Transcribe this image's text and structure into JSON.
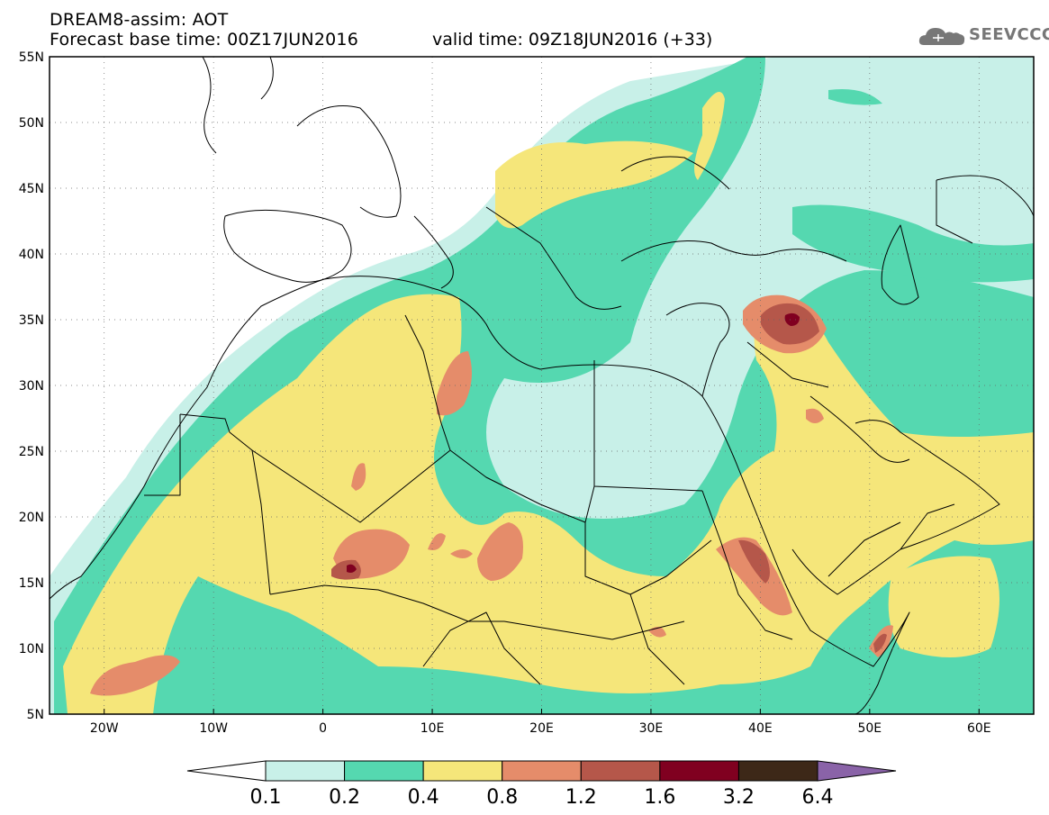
{
  "header": {
    "title": "DREAM8-assim: AOT",
    "base_time": "Forecast base time: 00Z17JUN2016",
    "valid_time": "valid time: 09Z18JUN2016 (+33)",
    "logo_text": "SEEVCCC"
  },
  "map": {
    "lat_labels": [
      "55N",
      "50N",
      "45N",
      "40N",
      "35N",
      "30N",
      "25N",
      "20N",
      "15N",
      "10N",
      "5N"
    ],
    "lon_labels": [
      "20W",
      "10W",
      "0",
      "10E",
      "20E",
      "30E",
      "40E",
      "50E",
      "60E"
    ],
    "lon_range": [
      -25,
      65
    ],
    "lat_range": [
      5,
      55
    ],
    "gridlines": "dotted"
  },
  "colorbar": {
    "labels": [
      "0.1",
      "0.2",
      "0.4",
      "0.8",
      "1.2",
      "1.6",
      "3.2",
      "6.4"
    ],
    "colors": [
      "#c8f0e8",
      "#55d8b0",
      "#f5e67a",
      "#e58c6a",
      "#b5574a",
      "#800020",
      "#3d2818",
      "#8a63a8"
    ]
  }
}
